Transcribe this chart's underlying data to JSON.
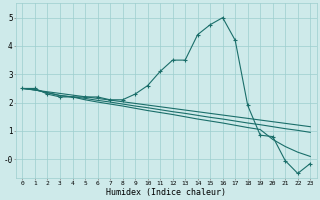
{
  "xlabel": "Humidex (Indice chaleur)",
  "bg_color": "#ceeaea",
  "line_color": "#1a6e6a",
  "grid_color": "#9dcece",
  "xlim": [
    -0.5,
    23.5
  ],
  "ylim": [
    -0.65,
    5.5
  ],
  "yticks": [
    0,
    1,
    2,
    3,
    4,
    5
  ],
  "ytick_labels": [
    "-0",
    "1",
    "2",
    "3",
    "4",
    "5"
  ],
  "xticks": [
    0,
    1,
    2,
    3,
    4,
    5,
    6,
    7,
    8,
    9,
    10,
    11,
    12,
    13,
    14,
    15,
    16,
    17,
    18,
    19,
    20,
    21,
    22,
    23
  ],
  "line1_x": [
    0,
    1,
    2,
    3,
    4,
    5,
    6,
    7,
    8,
    9,
    10,
    11,
    12,
    13,
    14,
    15,
    16,
    17,
    18,
    19,
    20,
    21,
    22,
    23
  ],
  "line1_y": [
    2.5,
    2.5,
    2.3,
    2.2,
    2.2,
    2.2,
    2.2,
    2.1,
    2.1,
    2.3,
    2.6,
    3.1,
    3.5,
    3.5,
    4.4,
    4.75,
    5.0,
    4.2,
    1.9,
    0.85,
    0.8,
    -0.05,
    -0.5,
    -0.15
  ],
  "line2_x": [
    0,
    23
  ],
  "line2_y": [
    2.5,
    1.15
  ],
  "line3_x": [
    0,
    1,
    2,
    3,
    4,
    5,
    6,
    7,
    8,
    9,
    10,
    11,
    12,
    13,
    14,
    15,
    16,
    17,
    18,
    19,
    20,
    21,
    22,
    23
  ],
  "line3_y": [
    2.5,
    2.45,
    2.35,
    2.25,
    2.2,
    2.15,
    2.08,
    2.02,
    1.95,
    1.88,
    1.82,
    1.75,
    1.68,
    1.62,
    1.55,
    1.48,
    1.42,
    1.35,
    1.28,
    1.22,
    1.15,
    1.08,
    1.02,
    0.95
  ],
  "line4_x": [
    0,
    1,
    2,
    3,
    4,
    5,
    6,
    7,
    8,
    9,
    10,
    11,
    12,
    13,
    14,
    15,
    16,
    17,
    18,
    19,
    20,
    21,
    22,
    23
  ],
  "line4_y": [
    2.5,
    2.45,
    2.35,
    2.25,
    2.2,
    2.1,
    2.02,
    1.95,
    1.88,
    1.8,
    1.72,
    1.65,
    1.58,
    1.5,
    1.42,
    1.35,
    1.28,
    1.2,
    1.12,
    1.05,
    0.7,
    0.45,
    0.25,
    0.1
  ]
}
